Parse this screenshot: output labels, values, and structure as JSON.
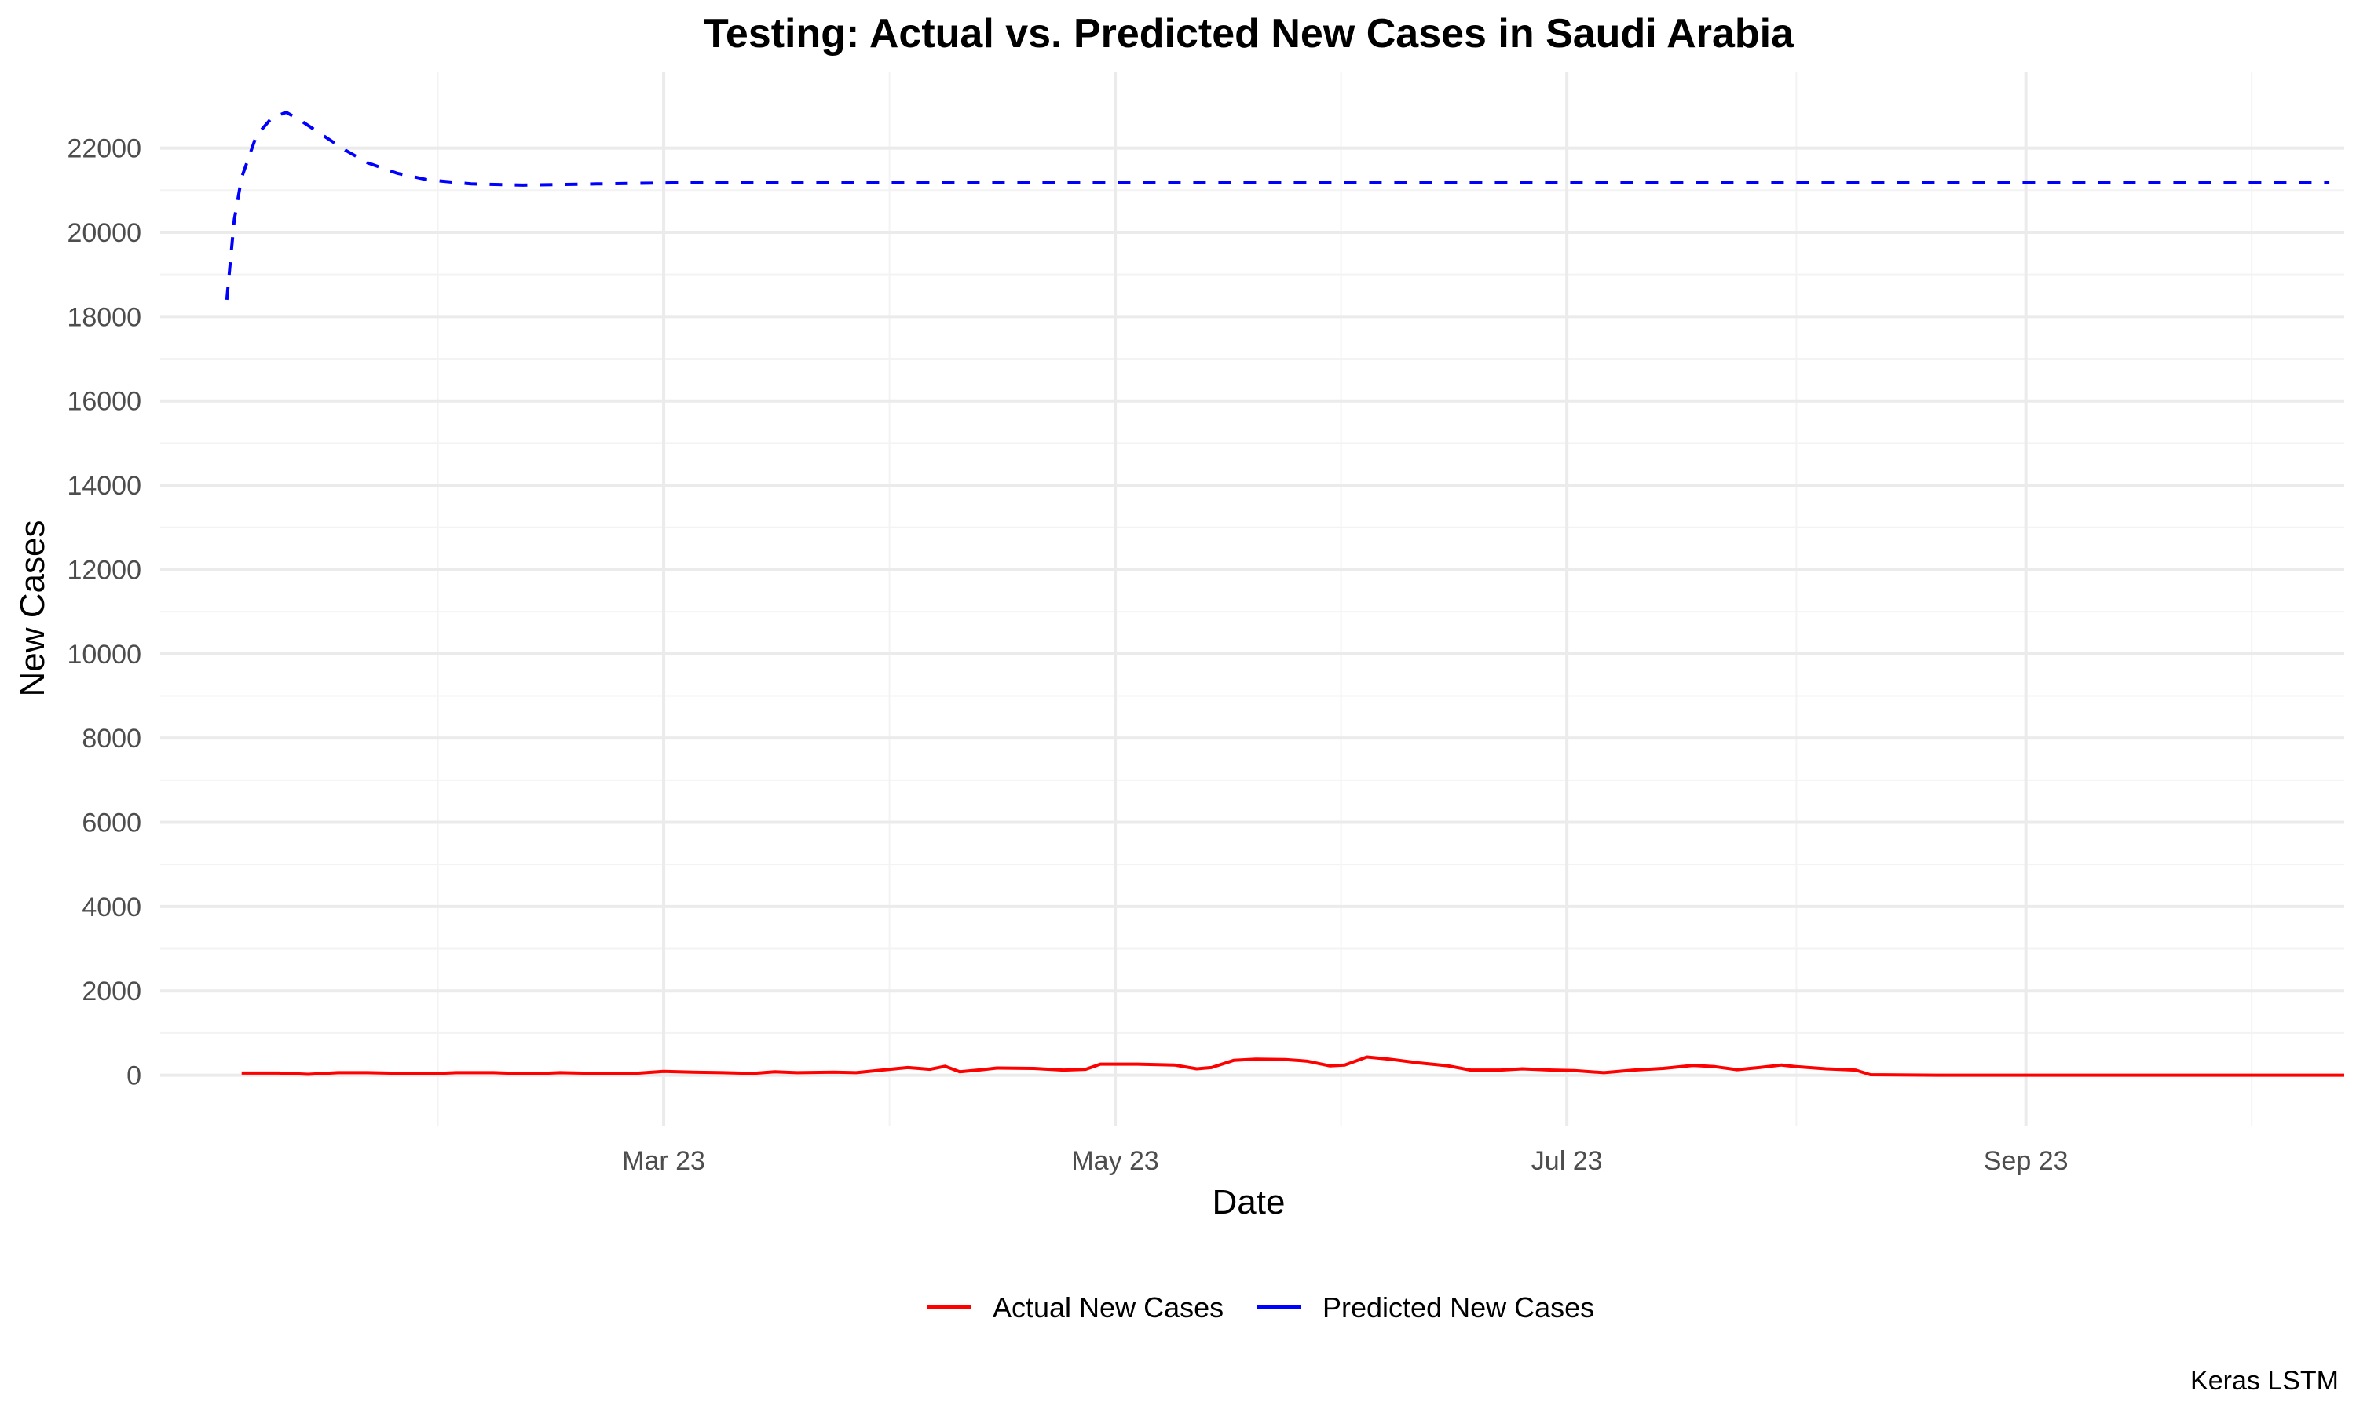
{
  "chart_data": {
    "type": "line",
    "title": "Testing: Actual vs. Predicted New Cases in Saudi Arabia",
    "xlabel": "Date",
    "ylabel": "New Cases",
    "caption": "Keras LSTM",
    "x_tick_labels": [
      "Mar 23",
      "May 23",
      "Jul 23",
      "Sep 23"
    ],
    "x_tick_dates": [
      "2023-03-01",
      "2023-05-01",
      "2023-07-01",
      "2023-09-01"
    ],
    "xlim": [
      "2022-12-23",
      "2023-10-14"
    ],
    "y_ticks": [
      0,
      2000,
      4000,
      6000,
      8000,
      10000,
      12000,
      14000,
      16000,
      18000,
      20000,
      22000
    ],
    "ylim": [
      -1200,
      23800
    ],
    "grid": true,
    "legend_position": "bottom",
    "series": [
      {
        "name": "Actual New Cases",
        "color": "#ff0000",
        "line_style": "solid",
        "points": [
          [
            "2023-01-03",
            50
          ],
          [
            "2023-01-08",
            50
          ],
          [
            "2023-01-12",
            20
          ],
          [
            "2023-01-16",
            60
          ],
          [
            "2023-01-20",
            60
          ],
          [
            "2023-01-25",
            40
          ],
          [
            "2023-01-28",
            30
          ],
          [
            "2023-02-01",
            60
          ],
          [
            "2023-02-06",
            60
          ],
          [
            "2023-02-11",
            30
          ],
          [
            "2023-02-15",
            60
          ],
          [
            "2023-02-20",
            40
          ],
          [
            "2023-02-25",
            40
          ],
          [
            "2023-03-01",
            90
          ],
          [
            "2023-03-05",
            70
          ],
          [
            "2023-03-09",
            60
          ],
          [
            "2023-03-13",
            40
          ],
          [
            "2023-03-16",
            80
          ],
          [
            "2023-03-19",
            60
          ],
          [
            "2023-03-24",
            70
          ],
          [
            "2023-03-27",
            60
          ],
          [
            "2023-03-31",
            130
          ],
          [
            "2023-04-03",
            180
          ],
          [
            "2023-04-06",
            140
          ],
          [
            "2023-04-08",
            210
          ],
          [
            "2023-04-10",
            80
          ],
          [
            "2023-04-13",
            130
          ],
          [
            "2023-04-15",
            170
          ],
          [
            "2023-04-20",
            160
          ],
          [
            "2023-04-24",
            120
          ],
          [
            "2023-04-27",
            140
          ],
          [
            "2023-04-29",
            260
          ],
          [
            "2023-05-04",
            260
          ],
          [
            "2023-05-09",
            240
          ],
          [
            "2023-05-12",
            150
          ],
          [
            "2023-05-14",
            180
          ],
          [
            "2023-05-17",
            350
          ],
          [
            "2023-05-20",
            380
          ],
          [
            "2023-05-24",
            370
          ],
          [
            "2023-05-27",
            330
          ],
          [
            "2023-05-30",
            220
          ],
          [
            "2023-06-01",
            240
          ],
          [
            "2023-06-04",
            430
          ],
          [
            "2023-06-07",
            380
          ],
          [
            "2023-06-11",
            290
          ],
          [
            "2023-06-15",
            220
          ],
          [
            "2023-06-18",
            120
          ],
          [
            "2023-06-22",
            120
          ],
          [
            "2023-06-25",
            150
          ],
          [
            "2023-06-29",
            120
          ],
          [
            "2023-07-02",
            110
          ],
          [
            "2023-07-06",
            60
          ],
          [
            "2023-07-10",
            120
          ],
          [
            "2023-07-14",
            160
          ],
          [
            "2023-07-18",
            230
          ],
          [
            "2023-07-21",
            200
          ],
          [
            "2023-07-24",
            130
          ],
          [
            "2023-07-27",
            180
          ],
          [
            "2023-07-30",
            240
          ],
          [
            "2023-08-01",
            200
          ],
          [
            "2023-08-05",
            150
          ],
          [
            "2023-08-09",
            120
          ],
          [
            "2023-08-11",
            10
          ],
          [
            "2023-08-20",
            0
          ],
          [
            "2023-09-10",
            0
          ],
          [
            "2023-10-01",
            0
          ],
          [
            "2023-10-14",
            0
          ]
        ]
      },
      {
        "name": "Predicted New Cases",
        "color": "#0000ff",
        "line_style": "dashed",
        "points": [
          [
            "2023-01-01",
            18400
          ],
          [
            "2023-01-02",
            20300
          ],
          [
            "2023-01-03",
            21300
          ],
          [
            "2023-01-05",
            22300
          ],
          [
            "2023-01-07",
            22700
          ],
          [
            "2023-01-09",
            22850
          ],
          [
            "2023-01-11",
            22650
          ],
          [
            "2023-01-14",
            22300
          ],
          [
            "2023-01-17",
            21950
          ],
          [
            "2023-01-20",
            21650
          ],
          [
            "2023-01-24",
            21400
          ],
          [
            "2023-01-28",
            21250
          ],
          [
            "2023-02-03",
            21150
          ],
          [
            "2023-02-10",
            21120
          ],
          [
            "2023-02-20",
            21150
          ],
          [
            "2023-03-05",
            21180
          ],
          [
            "2023-04-01",
            21180
          ],
          [
            "2023-06-01",
            21180
          ],
          [
            "2023-08-01",
            21180
          ],
          [
            "2023-10-01",
            21180
          ],
          [
            "2023-10-12",
            21180
          ]
        ]
      }
    ]
  }
}
